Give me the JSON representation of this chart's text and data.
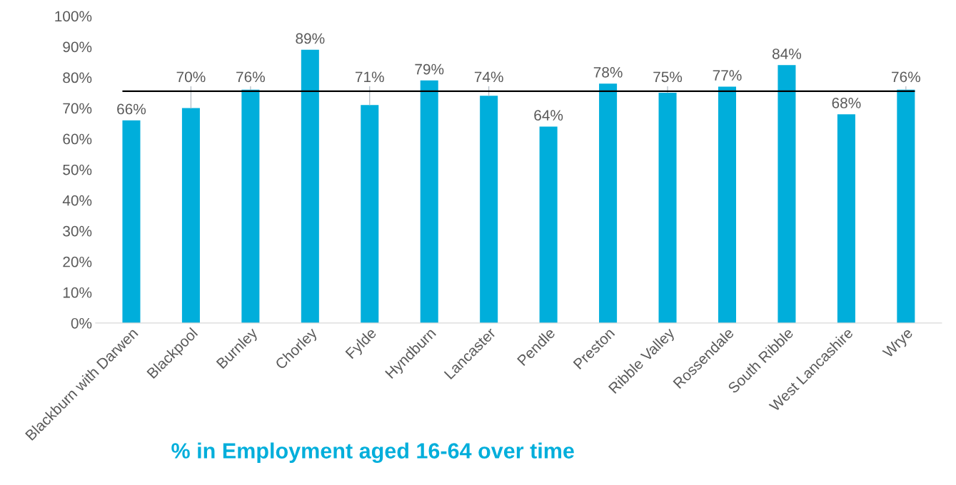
{
  "chart_data": {
    "type": "bar",
    "title": "% in Employment aged 16-64 over time",
    "categories": [
      "Blackburn with Darwen",
      "Blackpool",
      "Burnley",
      "Chorley",
      "Fylde",
      "Hyndburn",
      "Lancaster",
      "Pendle",
      "Preston",
      "Ribble Valley",
      "Rossendale",
      "South Ribble",
      "West Lancashire",
      "Wrye"
    ],
    "values": [
      66,
      70,
      76,
      89,
      71,
      79,
      74,
      64,
      78,
      75,
      77,
      84,
      68,
      76
    ],
    "value_labels": [
      "66%",
      "70%",
      "76%",
      "89%",
      "71%",
      "79%",
      "74%",
      "64%",
      "78%",
      "75%",
      "77%",
      "84%",
      "68%",
      "76%"
    ],
    "color": "#00aedb",
    "ylim": [
      0,
      100
    ],
    "yticks": [
      {
        "value": 0,
        "label": "0%"
      },
      {
        "value": 10,
        "label": "10%"
      },
      {
        "value": 20,
        "label": "20%"
      },
      {
        "value": 30,
        "label": "30%"
      },
      {
        "value": 40,
        "label": "40%"
      },
      {
        "value": 50,
        "label": "50%"
      },
      {
        "value": 60,
        "label": "60%"
      },
      {
        "value": 70,
        "label": "70%"
      },
      {
        "value": 80,
        "label": "80%"
      },
      {
        "value": 90,
        "label": "90%"
      },
      {
        "value": 100,
        "label": "100%"
      }
    ],
    "ref_lines": [
      {
        "axis": "y",
        "value": 75.5,
        "color": "#000000"
      }
    ],
    "grid": false,
    "legend": false
  }
}
